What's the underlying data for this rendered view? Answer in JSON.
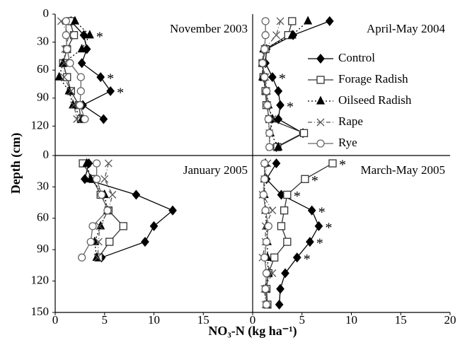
{
  "labels": {
    "x_label": "NO₃-N (kg ha⁻¹)",
    "y_label": "Depth (cm)"
  },
  "chart_data": [
    {
      "type": "line",
      "title": "November 2003",
      "xlim": [
        0,
        20
      ],
      "ylim": [
        0,
        150
      ],
      "yticks": [
        0,
        30,
        60,
        90,
        120
      ],
      "y": [
        7.5,
        22.5,
        37.5,
        52.5,
        67.5,
        82.5,
        97.5,
        112.5
      ],
      "significance_marker": "*",
      "significant_depths": [
        22.5,
        67.5,
        82.5
      ],
      "series": [
        {
          "name": "Control",
          "color": "#000000",
          "marker": "diamond",
          "line_style": "solid",
          "values": [
            1.6,
            2.9,
            3.2,
            2.7,
            4.6,
            5.6,
            2.8,
            4.9
          ]
        },
        {
          "name": "Forage Radish",
          "color": "#333333",
          "marker": "square",
          "line_style": "solid",
          "values": [
            1.5,
            1.9,
            1.2,
            0.8,
            1.2,
            1.6,
            2.4,
            2.6
          ]
        },
        {
          "name": "Oilseed Radish",
          "color": "#000000",
          "marker": "triangle",
          "line_style": "dotted",
          "values": [
            2.0,
            3.5,
            2.7,
            0.8,
            0.4,
            1.4,
            1.8,
            2.7
          ]
        },
        {
          "name": "Rape",
          "color": "#555555",
          "marker": "x",
          "line_style": "dashdot",
          "values": [
            0.6,
            1.4,
            1.0,
            0.9,
            0.9,
            1.6,
            1.9,
            2.2
          ]
        },
        {
          "name": "Rye",
          "color": "#666666",
          "marker": "circle",
          "line_style": "solid",
          "values": [
            1.1,
            1.1,
            1.2,
            1.5,
            2.6,
            2.6,
            2.5,
            3.0
          ]
        }
      ]
    },
    {
      "type": "line",
      "title": "April-May 2004",
      "xlim": [
        0,
        20
      ],
      "ylim": [
        0,
        150
      ],
      "legend": "right",
      "y": [
        7.5,
        22.5,
        37.5,
        52.5,
        67.5,
        82.5,
        97.5,
        112.5,
        127.5,
        142.5
      ],
      "significance_marker": "*",
      "significant_depths": [
        67.5,
        97.5
      ],
      "series": [
        {
          "name": "Control",
          "color": "#000000",
          "marker": "diamond",
          "line_style": "solid",
          "values": [
            7.8,
            4.1,
            1.4,
            1.3,
            2.0,
            2.6,
            2.8,
            2.6,
            5.1,
            2.4
          ]
        },
        {
          "name": "Forage Radish",
          "color": "#333333",
          "marker": "square",
          "line_style": "solid",
          "values": [
            4.0,
            3.6,
            1.3,
            1.0,
            1.1,
            1.3,
            1.4,
            1.7,
            5.2,
            2.5
          ]
        },
        {
          "name": "Oilseed Radish",
          "color": "#000000",
          "marker": "triangle",
          "line_style": "dotted",
          "values": [
            5.6,
            4.0,
            1.1,
            1.0,
            1.0,
            1.4,
            1.6,
            2.0,
            1.8,
            2.6
          ]
        },
        {
          "name": "Rape",
          "color": "#555555",
          "marker": "x",
          "line_style": "dashdot",
          "values": [
            2.8,
            2.4,
            1.2,
            1.0,
            1.3,
            1.4,
            1.5,
            2.0,
            1.7,
            1.8
          ]
        },
        {
          "name": "Rye",
          "color": "#666666",
          "marker": "circle",
          "line_style": "solid",
          "values": [
            1.3,
            1.3,
            1.2,
            1.0,
            1.2,
            1.4,
            1.5,
            1.6,
            1.7,
            1.7
          ]
        }
      ]
    },
    {
      "type": "line",
      "title": "January 2005",
      "xlim": [
        0,
        20
      ],
      "ylim": [
        0,
        150
      ],
      "xticks": [
        0,
        5,
        10,
        15
      ],
      "yticks": [
        0,
        30,
        60,
        90,
        120,
        150
      ],
      "y": [
        7.5,
        22.5,
        37.5,
        52.5,
        67.5,
        82.5,
        97.5
      ],
      "series": [
        {
          "name": "Control",
          "color": "#000000",
          "marker": "diamond",
          "line_style": "solid",
          "values": [
            3.4,
            3.0,
            8.2,
            11.9,
            10.0,
            9.1,
            4.7
          ]
        },
        {
          "name": "Forage Radish",
          "color": "#333333",
          "marker": "square",
          "line_style": "solid",
          "values": [
            2.8,
            3.8,
            4.6,
            5.4,
            6.9,
            5.5,
            4.4
          ]
        },
        {
          "name": "Oilseed Radish",
          "color": "#000000",
          "marker": "triangle",
          "line_style": "dotted",
          "values": [
            3.2,
            3.6,
            5.0,
            5.3,
            4.6,
            4.0,
            4.2
          ]
        },
        {
          "name": "Rape",
          "color": "#555555",
          "marker": "x",
          "line_style": "dashdot",
          "values": [
            5.4,
            5.0,
            5.8,
            5.4,
            4.5,
            4.4,
            4.3
          ]
        },
        {
          "name": "Rye",
          "color": "#666666",
          "marker": "circle",
          "line_style": "solid",
          "values": [
            4.2,
            4.2,
            4.7,
            5.3,
            3.8,
            3.6,
            2.7
          ]
        }
      ]
    },
    {
      "type": "line",
      "title": "March-May 2005",
      "xlim": [
        0,
        20
      ],
      "ylim": [
        0,
        150
      ],
      "xticks": [
        0,
        5,
        10,
        15,
        20
      ],
      "y": [
        7.5,
        22.5,
        37.5,
        52.5,
        67.5,
        82.5,
        97.5,
        112.5,
        127.5,
        142.5
      ],
      "significance_marker": "*",
      "significant_depths": [
        7.5,
        22.5,
        37.5,
        52.5,
        67.5,
        82.5,
        97.5
      ],
      "series": [
        {
          "name": "Control",
          "color": "#000000",
          "marker": "diamond",
          "line_style": "solid",
          "values": [
            2.4,
            1.4,
            2.9,
            6.0,
            6.7,
            5.8,
            4.5,
            3.3,
            2.8,
            2.7
          ]
        },
        {
          "name": "Forage Radish",
          "color": "#333333",
          "marker": "square",
          "line_style": "solid",
          "values": [
            8.1,
            5.3,
            3.5,
            3.2,
            2.9,
            3.5,
            2.2,
            1.6,
            1.4,
            1.5
          ]
        },
        {
          "name": "Oilseed Radish",
          "color": "#000000",
          "marker": "triangle",
          "line_style": "dotted",
          "values": [
            1.3,
            1.2,
            1.2,
            1.3,
            1.4,
            1.5,
            1.5,
            1.6,
            1.3,
            1.4
          ]
        },
        {
          "name": "Rape",
          "color": "#555555",
          "marker": "x",
          "line_style": "dashdot",
          "values": [
            1.5,
            1.2,
            1.0,
            2.0,
            1.3,
            1.3,
            1.0,
            2.0,
            1.2,
            1.3
          ]
        },
        {
          "name": "Rye",
          "color": "#666666",
          "marker": "circle",
          "line_style": "solid",
          "values": [
            1.2,
            1.2,
            1.1,
            1.3,
            1.6,
            1.4,
            1.2,
            1.4,
            1.3,
            1.4
          ]
        }
      ]
    }
  ]
}
